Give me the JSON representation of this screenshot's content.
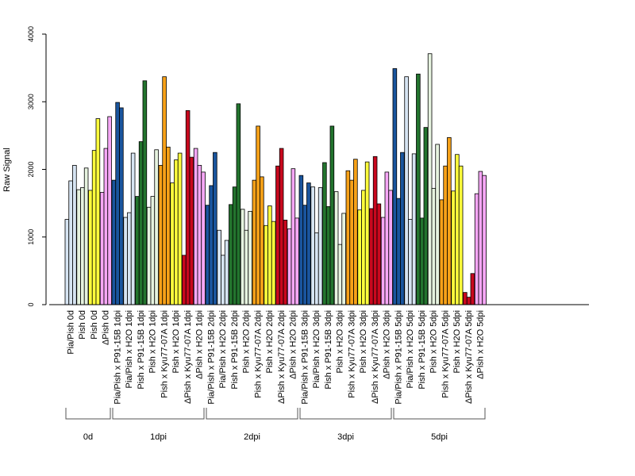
{
  "chart_data": {
    "type": "bar",
    "ylabel": "Raw Signal",
    "ylim": [
      0,
      4000
    ],
    "yticks": [
      0,
      1000,
      2000,
      3000,
      4000
    ],
    "grid": false,
    "legend": "none",
    "bars_per_category": 3,
    "categories": [
      {
        "label": "Pia/Pish 0d",
        "color": "#d6e4f2",
        "values": [
          1260,
          1830,
          2060
        ]
      },
      {
        "label": "Pish 0d",
        "color": "#e6f3df",
        "values": [
          1700,
          1730,
          2020
        ]
      },
      {
        "label": "Pish 0d",
        "color": "#ffff3c",
        "values": [
          1690,
          2280,
          2750
        ]
      },
      {
        "label": "ΔPish 0d",
        "color": "#f6a7f6",
        "values": [
          1660,
          2310,
          2780
        ]
      },
      {
        "label": "Pia/Pish x P91-15B 1dpi",
        "color": "#1a559e",
        "values": [
          1840,
          2990,
          2910
        ]
      },
      {
        "label": "Pia/Pish x H2O 1dpi",
        "color": "#d6e4f2",
        "values": [
          1290,
          1360,
          2240
        ]
      },
      {
        "label": "Pish x P91-15B 1dpi",
        "color": "#23742e",
        "values": [
          1600,
          2410,
          3310
        ]
      },
      {
        "label": "Pish x H2O 1dpi",
        "color": "#e6f3df",
        "values": [
          1440,
          1600,
          2290
        ]
      },
      {
        "label": "Pish x Kyu77-07A 1dpi",
        "color": "#f7a118",
        "values": [
          2060,
          3370,
          2330
        ]
      },
      {
        "label": "Pish x H2O 1dpi",
        "color": "#ffff3c",
        "values": [
          1800,
          2140,
          2240
        ]
      },
      {
        "label": "ΔPish x Kyu77-07A 1dpi",
        "color": "#c9081e",
        "values": [
          730,
          2870,
          2180
        ]
      },
      {
        "label": "ΔPish x H2O 1dpi",
        "color": "#f6a7f6",
        "values": [
          2310,
          2060,
          1960
        ]
      },
      {
        "label": "Pia/Pish x P91-15B 2dpi",
        "color": "#1a559e",
        "values": [
          1470,
          1760,
          2250
        ]
      },
      {
        "label": "Pia/Pish x H2O 2dpi",
        "color": "#d6e4f2",
        "values": [
          1100,
          730,
          950
        ]
      },
      {
        "label": "Pish x P91-15B 2dpi",
        "color": "#23742e",
        "values": [
          1480,
          1740,
          2970
        ]
      },
      {
        "label": "Pish x H2O 2dpi",
        "color": "#e6f3df",
        "values": [
          1410,
          1100,
          1380
        ]
      },
      {
        "label": "Pish x Kyu77-07A 2dpi",
        "color": "#f7a118",
        "values": [
          1840,
          2640,
          1890
        ]
      },
      {
        "label": "Pish x H2O 2dpi",
        "color": "#ffff3c",
        "values": [
          1170,
          1460,
          1230
        ]
      },
      {
        "label": "ΔPish x Kyu77-07A 2dpi",
        "color": "#c9081e",
        "values": [
          2050,
          2310,
          1250
        ]
      },
      {
        "label": "ΔPish x H2O 2dpi",
        "color": "#f6a7f6",
        "values": [
          1120,
          2010,
          1280
        ]
      },
      {
        "label": "Pia/Pish x P91-15B 3dpi",
        "color": "#1a559e",
        "values": [
          1910,
          1470,
          1800
        ]
      },
      {
        "label": "Pia/Pish x H2O 3dpi",
        "color": "#d6e4f2",
        "values": [
          1740,
          1060,
          1730
        ]
      },
      {
        "label": "Pish x P91-15B 3dpi",
        "color": "#23742e",
        "values": [
          2100,
          1450,
          2640
        ]
      },
      {
        "label": "Pish x H2O 3dpi",
        "color": "#e6f3df",
        "values": [
          1670,
          890,
          1350
        ]
      },
      {
        "label": "Pish x Kyu77-07A 3dpi",
        "color": "#f7a118",
        "values": [
          1980,
          1840,
          2150
        ]
      },
      {
        "label": "Pish x H2O 3dpi",
        "color": "#ffff3c",
        "values": [
          1400,
          1690,
          2110
        ]
      },
      {
        "label": "ΔPish x Kyu77-07A 3dpi",
        "color": "#c9081e",
        "values": [
          1420,
          2190,
          1490
        ]
      },
      {
        "label": "ΔPish x H2O 3dpi",
        "color": "#f6a7f6",
        "values": [
          1290,
          1960,
          1690
        ]
      },
      {
        "label": "Pia/Pish x P91-15B 5dpi",
        "color": "#1a559e",
        "values": [
          3490,
          1570,
          2250
        ]
      },
      {
        "label": "Pia/Pish x H2O 5dpi",
        "color": "#d6e4f2",
        "values": [
          3370,
          1260,
          2230
        ]
      },
      {
        "label": "Pish x P91-15B 5dpi",
        "color": "#23742e",
        "values": [
          3410,
          1280,
          2620
        ]
      },
      {
        "label": "Pish x H2O 5dpi",
        "color": "#e6f3df",
        "values": [
          3710,
          1720,
          2370
        ]
      },
      {
        "label": "Pish x Kyu77-07A 5dpi",
        "color": "#f7a118",
        "values": [
          1550,
          2050,
          2470
        ]
      },
      {
        "label": "Pish x H2O 5dpi",
        "color": "#ffff3c",
        "values": [
          1680,
          2220,
          2050
        ]
      },
      {
        "label": "ΔPish x Kyu77-07A 5dpi",
        "color": "#c9081e",
        "values": [
          180,
          110,
          460
        ]
      },
      {
        "label": "ΔPish x H2O 5dpi",
        "color": "#f6a7f6",
        "values": [
          1640,
          1970,
          1910
        ]
      }
    ],
    "groups": [
      {
        "label": "0d",
        "first": 0,
        "last": 3
      },
      {
        "label": "1dpi",
        "first": 4,
        "last": 11
      },
      {
        "label": "2dpi",
        "first": 12,
        "last": 19
      },
      {
        "label": "3dpi",
        "first": 20,
        "last": 27
      },
      {
        "label": "5dpi",
        "first": 28,
        "last": 35
      }
    ]
  }
}
